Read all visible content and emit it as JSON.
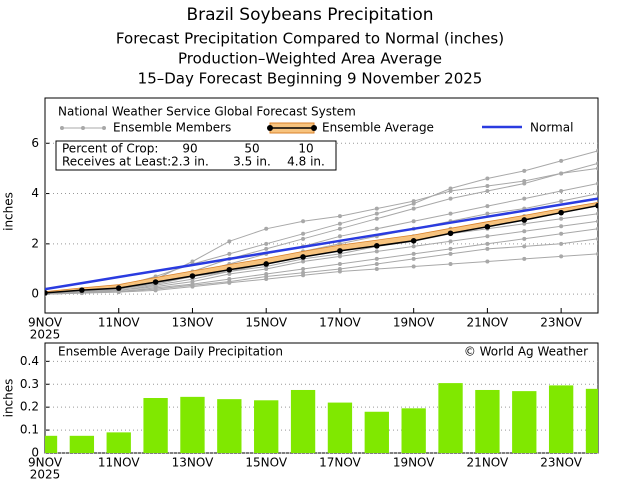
{
  "header": {
    "title": "Brazil Soybeans Precipitation",
    "subtitles": [
      "Forecast Precipitation Compared to Normal (inches)",
      "Production–Weighted Area Average",
      "15–Day Forecast Beginning 9 November 2025"
    ]
  },
  "chart_data": [
    {
      "type": "line",
      "legend_title": "National Weather Service Global Forecast System",
      "y_label": "inches",
      "x": [
        "2025-11-09",
        "2025-11-10",
        "2025-11-11",
        "2025-11-12",
        "2025-11-13",
        "2025-11-14",
        "2025-11-15",
        "2025-11-16",
        "2025-11-17",
        "2025-11-18",
        "2025-11-19",
        "2025-11-20",
        "2025-11-21",
        "2025-11-22",
        "2025-11-23",
        "2025-11-24"
      ],
      "xlim": [
        "2025-11-09",
        "2025-11-24"
      ],
      "xticks": [
        {
          "value": "2025-11-09",
          "label": "9NOV"
        },
        {
          "value": "2025-11-11",
          "label": "11NOV"
        },
        {
          "value": "2025-11-13",
          "label": "13NOV"
        },
        {
          "value": "2025-11-15",
          "label": "15NOV"
        },
        {
          "value": "2025-11-17",
          "label": "17NOV"
        },
        {
          "value": "2025-11-19",
          "label": "19NOV"
        },
        {
          "value": "2025-11-21",
          "label": "21NOV"
        },
        {
          "value": "2025-11-23",
          "label": "23NOV"
        }
      ],
      "x_year_label": "2025",
      "ylim": [
        -0.75,
        7.8
      ],
      "yticks": [
        0,
        2,
        4,
        6
      ],
      "grid": true,
      "ensemble_members": {
        "name": "Ensemble Members",
        "color": "#a8a8a8",
        "runs": [
          [
            0,
            0.15,
            0.3,
            0.7,
            1.2,
            1.6,
            2.0,
            2.4,
            2.8,
            3.2,
            3.6,
            4.2,
            4.6,
            4.9,
            5.3,
            5.7
          ],
          [
            0,
            0.15,
            0.3,
            0.6,
            1.3,
            2.1,
            2.6,
            2.9,
            3.1,
            3.4,
            3.7,
            4.1,
            4.3,
            4.5,
            4.8,
            5.2
          ],
          [
            0,
            0.1,
            0.25,
            0.5,
            0.9,
            1.4,
            1.8,
            2.2,
            2.6,
            3.0,
            3.4,
            3.8,
            4.1,
            4.4,
            4.8,
            5.0
          ],
          [
            0,
            0.1,
            0.2,
            0.5,
            0.8,
            1.2,
            1.6,
            1.9,
            2.3,
            2.6,
            2.9,
            3.2,
            3.5,
            3.8,
            4.1,
            4.4
          ],
          [
            0,
            0.1,
            0.2,
            0.45,
            0.7,
            1.0,
            1.3,
            1.7,
            2.0,
            2.3,
            2.6,
            2.9,
            3.2,
            3.4,
            3.7,
            4.0
          ],
          [
            0,
            0.08,
            0.2,
            0.4,
            0.7,
            0.9,
            1.2,
            1.5,
            1.8,
            2.0,
            2.3,
            2.6,
            2.8,
            3.1,
            3.3,
            3.6
          ],
          [
            0,
            0.08,
            0.15,
            0.35,
            0.6,
            0.9,
            1.1,
            1.4,
            1.6,
            1.9,
            2.1,
            2.4,
            2.6,
            2.8,
            3.0,
            3.2
          ],
          [
            0,
            0.05,
            0.15,
            0.3,
            0.5,
            0.8,
            1.0,
            1.3,
            1.5,
            1.7,
            1.9,
            2.1,
            2.3,
            2.5,
            2.7,
            2.9
          ],
          [
            0,
            0.05,
            0.1,
            0.25,
            0.4,
            0.6,
            0.8,
            1.0,
            1.2,
            1.4,
            1.6,
            1.8,
            2.0,
            2.2,
            2.4,
            2.6
          ],
          [
            0,
            0.05,
            0.1,
            0.2,
            0.35,
            0.5,
            0.7,
            0.85,
            1.0,
            1.2,
            1.4,
            1.6,
            1.8,
            1.9,
            2.0,
            2.2
          ],
          [
            0,
            0.04,
            0.08,
            0.15,
            0.3,
            0.45,
            0.6,
            0.75,
            0.9,
            1.0,
            1.1,
            1.2,
            1.3,
            1.4,
            1.5,
            1.6
          ]
        ]
      },
      "series": [
        {
          "name": "Ensemble Average",
          "color": "#000000",
          "band_color": "#f7c37e",
          "band_edge_color": "#d9822b",
          "values": [
            0.05,
            0.16,
            0.24,
            0.48,
            0.72,
            0.97,
            1.2,
            1.48,
            1.72,
            1.92,
            2.12,
            2.42,
            2.68,
            2.95,
            3.24,
            3.52
          ],
          "band_upper": [
            0.1,
            0.25,
            0.38,
            0.66,
            0.92,
            1.18,
            1.42,
            1.7,
            1.95,
            2.15,
            2.35,
            2.62,
            2.88,
            3.13,
            3.4,
            3.65
          ]
        },
        {
          "name": "Normal",
          "color": "#2a3be0",
          "values": [
            0.2,
            0.44,
            0.68,
            0.92,
            1.16,
            1.4,
            1.64,
            1.88,
            2.12,
            2.36,
            2.6,
            2.84,
            3.08,
            3.32,
            3.56,
            3.8
          ]
        }
      ],
      "crop_table": {
        "percent_label": "Percent of Crop:",
        "percents": [
          90,
          50,
          10
        ],
        "amount_label": "Receives at Least:",
        "amounts": [
          2.3,
          3.5,
          4.8
        ],
        "amount_labels": [
          "2.3 in.",
          "3.5 in.",
          "4.8 in."
        ]
      }
    },
    {
      "type": "bar",
      "title": "Ensemble Average Daily Precipitation",
      "annotation": "© World Ag Weather",
      "y_label": "inches",
      "x": [
        "2025-11-09",
        "2025-11-10",
        "2025-11-11",
        "2025-11-12",
        "2025-11-13",
        "2025-11-14",
        "2025-11-15",
        "2025-11-16",
        "2025-11-17",
        "2025-11-18",
        "2025-11-19",
        "2025-11-20",
        "2025-11-21",
        "2025-11-22",
        "2025-11-23",
        "2025-11-24"
      ],
      "xlim": [
        "2025-11-09",
        "2025-11-24"
      ],
      "xticks": [
        {
          "value": "2025-11-09",
          "label": "9NOV"
        },
        {
          "value": "2025-11-11",
          "label": "11NOV"
        },
        {
          "value": "2025-11-13",
          "label": "13NOV"
        },
        {
          "value": "2025-11-15",
          "label": "15NOV"
        },
        {
          "value": "2025-11-17",
          "label": "17NOV"
        },
        {
          "value": "2025-11-19",
          "label": "19NOV"
        },
        {
          "value": "2025-11-21",
          "label": "21NOV"
        },
        {
          "value": "2025-11-23",
          "label": "23NOV"
        }
      ],
      "x_year_label": "2025",
      "ylim": [
        0,
        0.48
      ],
      "yticks": [
        0,
        0.1,
        0.2,
        0.3,
        0.4
      ],
      "grid": true,
      "color": "#80e800",
      "values": [
        0.075,
        0.075,
        0.09,
        0.24,
        0.245,
        0.235,
        0.23,
        0.275,
        0.22,
        0.18,
        0.195,
        0.305,
        0.275,
        0.27,
        0.295,
        0.28
      ]
    }
  ]
}
